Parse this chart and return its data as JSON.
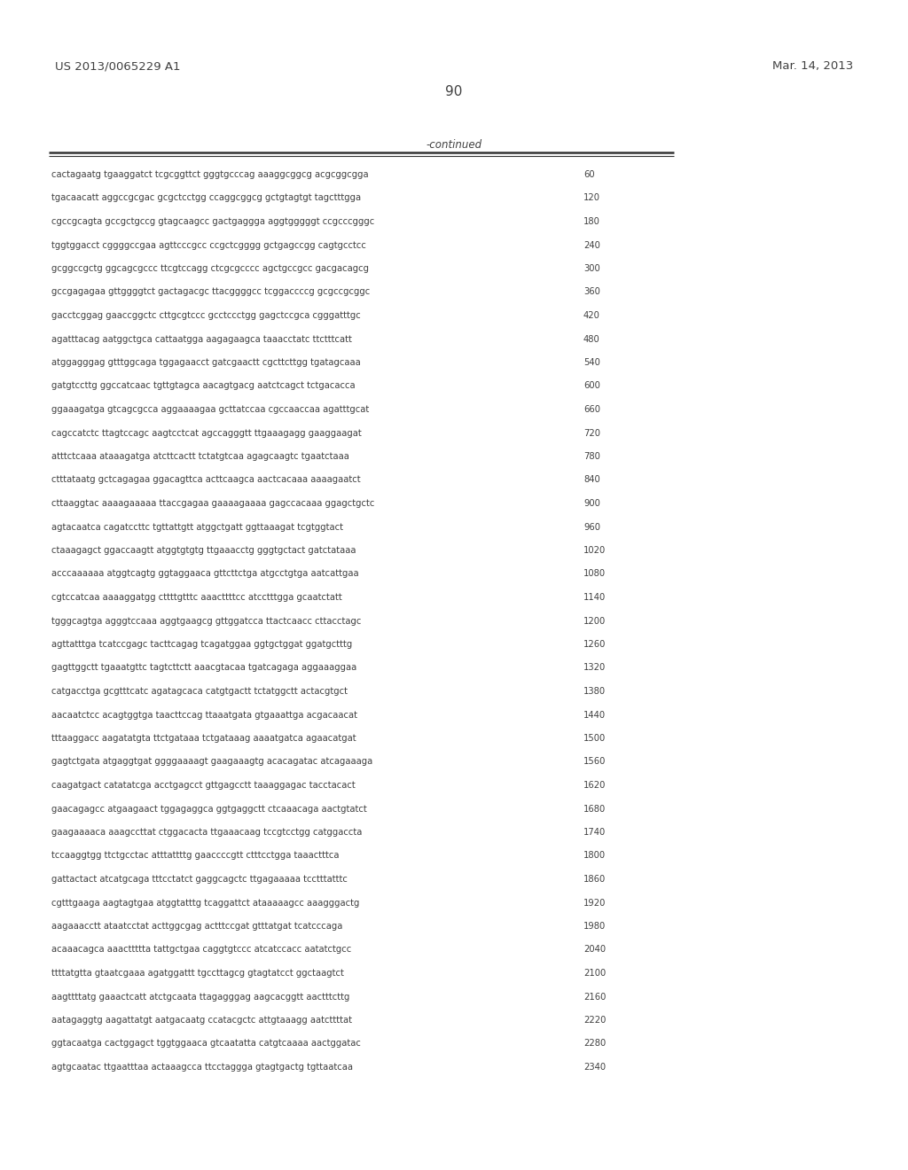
{
  "header_left": "US 2013/0065229 A1",
  "header_right": "Mar. 14, 2013",
  "page_number": "90",
  "continued_label": "-continued",
  "background_color": "#ffffff",
  "text_color": "#404040",
  "font_size": 7.2,
  "header_font_size": 9.5,
  "page_num_font_size": 11,
  "continued_font_size": 8.5,
  "sequence_lines": [
    [
      "cactagaatg tgaaggatct tcgcggttct gggtgcccag aaaggcggcg acgcggcgga",
      "60"
    ],
    [
      "tgacaacatt aggccgcgac gcgctcctgg ccaggcggcg gctgtagtgt tagctttgga",
      "120"
    ],
    [
      "cgccgcagta gccgctgccg gtagcaagcc gactgaggga aggtgggggt ccgcccgggc",
      "180"
    ],
    [
      "tggtggacct cggggccgaa agttcccgcc ccgctcgggg gctgagccgg cagtgcctcc",
      "240"
    ],
    [
      "gcggccgctg ggcagcgccc ttcgtccagg ctcgcgcccc agctgccgcc gacgacagcg",
      "300"
    ],
    [
      "gccgagagaa gttggggtct gactagacgc ttacggggcc tcggaccccg gcgccgcggc",
      "360"
    ],
    [
      "gacctcggag gaaccggctc cttgcgtccc gcctccctgg gagctccgca cgggatttgc",
      "420"
    ],
    [
      "agatttacag aatggctgca cattaatgga aagagaagca taaacctatc ttctttcatt",
      "480"
    ],
    [
      "atggagggag gtttggcaga tggagaacct gatcgaactt cgcttcttgg tgatagcaaa",
      "540"
    ],
    [
      "gatgtccttg ggccatcaac tgttgtagca aacagtgacg aatctcagct tctgacacca",
      "600"
    ],
    [
      "ggaaagatga gtcagcgcca aggaaaagaa gcttatccaa cgccaaccaa agatttgcat",
      "660"
    ],
    [
      "cagccatctc ttagtccagc aagtcctcat agccagggtt ttgaaagagg gaaggaagat",
      "720"
    ],
    [
      "atttctcaaa ataaagatga atcttcactt tctatgtcaa agagcaagtc tgaatctaaa",
      "780"
    ],
    [
      "ctttataatg gctcagagaa ggacagttca acttcaagca aactcacaaa aaaagaatct",
      "840"
    ],
    [
      "cttaaggtac aaaagaaaaa ttaccgagaa gaaaagaaaa gagccacaaa ggagctgctc",
      "900"
    ],
    [
      "agtacaatca cagatccttc tgttattgtt atggctgatt ggttaaagat tcgtggtact",
      "960"
    ],
    [
      "ctaaagagct ggaccaagtt atggtgtgtg ttgaaacctg gggtgctact gatctataaa",
      "1020"
    ],
    [
      "acccaaaaaa atggtcagtg ggtaggaaca gttcttctga atgcctgtga aatcattgaa",
      "1080"
    ],
    [
      "cgtccatcaa aaaaggatgg cttttgtttc aaacttttcc atcctttgga gcaatctatt",
      "1140"
    ],
    [
      "tgggcagtga agggtccaaa aggtgaagcg gttggatcca ttactcaacc cttacctagc",
      "1200"
    ],
    [
      "agttatttga tcatccgagc tacttcagag tcagatggaa ggtgctggat ggatgctttg",
      "1260"
    ],
    [
      "gagttggctt tgaaatgttc tagtcttctt aaacgtacaa tgatcagaga aggaaaggaa",
      "1320"
    ],
    [
      "catgacctga gcgtttcatc agatagcaca catgtgactt tctatggctt actacgtgct",
      "1380"
    ],
    [
      "aacaatctcc acagtggtga taacttccag ttaaatgata gtgaaattga acgacaacat",
      "1440"
    ],
    [
      "tttaaggacc aagatatgta ttctgataaa tctgataaag aaaatgatca agaacatgat",
      "1500"
    ],
    [
      "gagtctgata atgaggtgat ggggaaaagt gaagaaagtg acacagatac atcagaaaga",
      "1560"
    ],
    [
      "caagatgact catatatcga acctgagcct gttgagcctt taaaggagac tacctacact",
      "1620"
    ],
    [
      "gaacagagcc atgaagaact tggagaggca ggtgaggctt ctcaaacaga aactgtatct",
      "1680"
    ],
    [
      "gaagaaaaca aaagccttat ctggacacta ttgaaacaag tccgtcctgg catggaccta",
      "1740"
    ],
    [
      "tccaaggtgg ttctgcctac atttattttg gaaccccgtt ctttcctgga taaactttca",
      "1800"
    ],
    [
      "gattactact atcatgcaga tttcctatct gaggcagctc ttgagaaaaa tcctttatttc",
      "1860"
    ],
    [
      "cgtttgaaga aagtagtgaa atggtatttg tcaggattct ataaaaagcc aaagggactg",
      "1920"
    ],
    [
      "aagaaacctt ataatcctat acttggcgag actttccgat gtttatgat tcatcccaga",
      "1980"
    ],
    [
      "acaaacagca aaacttttta tattgctgaa caggtgtccc atcatccacc aatatctgcc",
      "2040"
    ],
    [
      "ttttatgtta gtaatcgaaa agatggattt tgccttagcg gtagtatcct ggctaagtct",
      "2100"
    ],
    [
      "aagttttatg gaaactcatt atctgcaata ttagagggag aagcacggtt aactttcttg",
      "2160"
    ],
    [
      "aatagaggtg aagattatgt aatgacaatg ccatacgctc attgtaaagg aatcttttat",
      "2220"
    ],
    [
      "ggtacaatga cactggagct tggtggaaca gtcaatatta catgtcaaaa aactggatac",
      "2280"
    ],
    [
      "agtgcaatac ttgaatttaa actaaagcca ttcctaggga gtagtgactg tgttaatcaa",
      "2340"
    ]
  ]
}
